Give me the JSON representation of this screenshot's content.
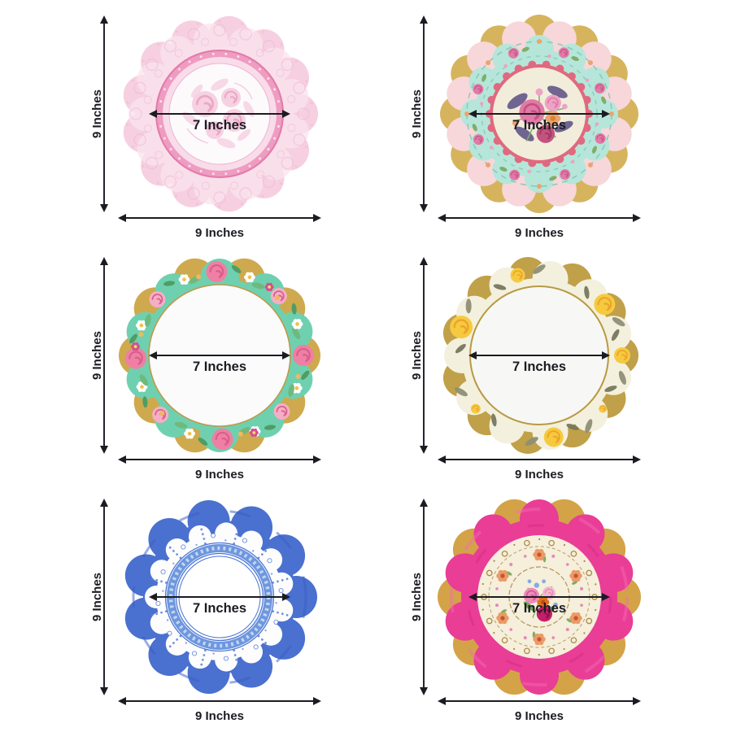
{
  "figure": {
    "background": "#ffffff",
    "arrow_color": "#1b1b22",
    "label_color": "#1b1b22"
  },
  "plates": [
    {
      "style": "pink-lace",
      "height_label": "9 Inches",
      "width_label": "9 Inches",
      "diameter_label": "7 Inches",
      "colors": {
        "ruffle": "#f6d0e0",
        "ruffle_light": "#fbe4ee",
        "lace": "#eeb4d0",
        "ring": "#ef9cc2",
        "ring_edge": "#e27aa8",
        "band": "#f8dcea",
        "center": "#fdfafc",
        "toile": "#f5c8dc",
        "toile_line": "#e893b8"
      }
    },
    {
      "style": "vintage-floral",
      "height_label": "9 Inches",
      "width_label": "9 Inches",
      "diameter_label": "7 Inches",
      "colors": {
        "gold": "#d6b45e",
        "rim": "#f7d7da",
        "mint": "#b5e6d9",
        "scroll": "#7fbfae",
        "ring": "#e0697f",
        "center": "#f2eddb",
        "rose": "#e279a7",
        "rose_dark": "#c2537f",
        "peach": "#eda36f",
        "leaf_purple": "#6f6590",
        "leaf_green": "#7fae6a",
        "bud_pink": "#eca3c4"
      }
    },
    {
      "style": "mint-roses",
      "height_label": "9 Inches",
      "width_label": "9 Inches",
      "diameter_label": "7 Inches",
      "colors": {
        "gold": "#cfa94e",
        "mint": "#6fd0b0",
        "rose": "#ef7fa4",
        "rose_dark": "#d95f8a",
        "rose_pale": "#f6aec6",
        "white_fl": "#ffffff",
        "leaf": "#6fb97c",
        "leaf_dark": "#4f9d63",
        "peach": "#f0b95c",
        "magenta": "#d64f8e",
        "center": "#fafbfa",
        "center_line": "#c09a4a"
      }
    },
    {
      "style": "yellow-roses",
      "height_label": "9 Inches",
      "width_label": "9 Inches",
      "diameter_label": "7 Inches",
      "colors": {
        "gold": "#c0a049",
        "rim": "#f4f0de",
        "rose": "#f6ca3e",
        "rose_dark": "#eca42e",
        "leaf": "#8e8e74",
        "leaf_dark": "#77775e",
        "center": "#f7f8f5",
        "ring": "#b89a45"
      }
    },
    {
      "style": "blue-scallop",
      "height_label": "9 Inches",
      "width_label": "9 Inches",
      "diameter_label": "7 Inches",
      "colors": {
        "rim": "#4a70d0",
        "rim_dark": "#3a5bc2",
        "doily": "#fdfdfe",
        "filigree": "#5b7fd6",
        "band": "#6d97de",
        "line": "#4a74d4",
        "center": "#ffffff"
      }
    },
    {
      "style": "hot-pink",
      "height_label": "9 Inches",
      "width_label": "9 Inches",
      "diameter_label": "7 Inches",
      "colors": {
        "gold": "#d4a348",
        "rim": "#e93d96",
        "rim_light": "#f56cb1",
        "rim_dark": "#cf2780",
        "center": "#f5efdb",
        "scroll": "#ad8a48",
        "sprig": "#eb9a66",
        "sprig_dark": "#c05636",
        "bud": "#e38ab4",
        "rose_pink": "#ef8ab8",
        "rose_magenta": "#c41f6b",
        "orange": "#e0701f",
        "blue": "#88abdc",
        "leaf": "#76a45a",
        "pale": "#f2b9d0"
      }
    }
  ]
}
